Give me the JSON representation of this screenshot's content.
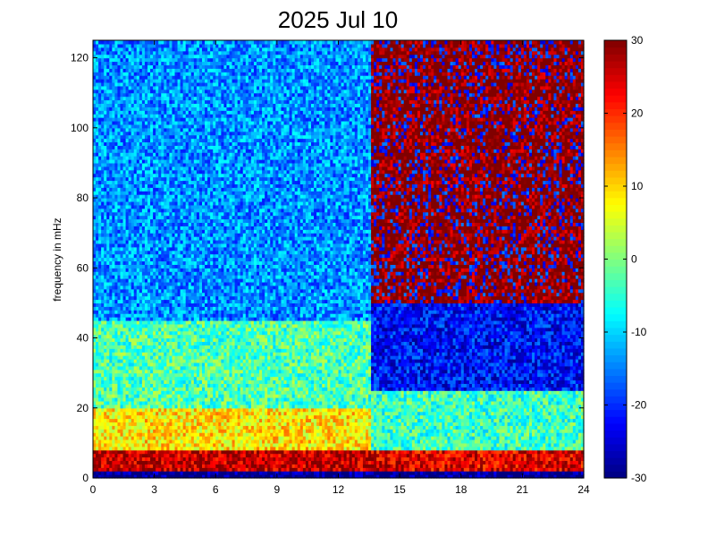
{
  "chart_data": {
    "type": "heatmap",
    "title": "2025 Jul 10",
    "xlabel": "",
    "ylabel": "frequency in mHz",
    "xlim": [
      0,
      24
    ],
    "ylim": [
      0,
      125
    ],
    "xticks": [
      0,
      3,
      6,
      9,
      12,
      15,
      18,
      21,
      24
    ],
    "yticks": [
      0,
      20,
      40,
      60,
      80,
      100,
      120
    ],
    "colorbar": {
      "range": [
        -30,
        30
      ],
      "ticks": [
        -30,
        -20,
        -10,
        0,
        10,
        20,
        30
      ],
      "colormap": "jet"
    },
    "regions": [
      {
        "x": [
          0,
          13.6
        ],
        "y": [
          0,
          2
        ],
        "value": -30
      },
      {
        "x": [
          0,
          13.6
        ],
        "y": [
          2,
          8
        ],
        "value": 26
      },
      {
        "x": [
          0,
          13.6
        ],
        "y": [
          8,
          20
        ],
        "value": 9
      },
      {
        "x": [
          0,
          13.6
        ],
        "y": [
          20,
          45
        ],
        "value": -3
      },
      {
        "x": [
          0,
          13.6
        ],
        "y": [
          45,
          125
        ],
        "value": -14
      },
      {
        "x": [
          13.6,
          24
        ],
        "y": [
          0,
          2
        ],
        "value": -30
      },
      {
        "x": [
          13.6,
          24
        ],
        "y": [
          2,
          8
        ],
        "value": 24
      },
      {
        "x": [
          13.6,
          24
        ],
        "y": [
          8,
          25
        ],
        "value": -4
      },
      {
        "x": [
          13.6,
          24
        ],
        "y": [
          25,
          50
        ],
        "value": -22
      },
      {
        "x": [
          13.6,
          24
        ],
        "y": [
          50,
          125
        ],
        "value": 30
      }
    ]
  }
}
